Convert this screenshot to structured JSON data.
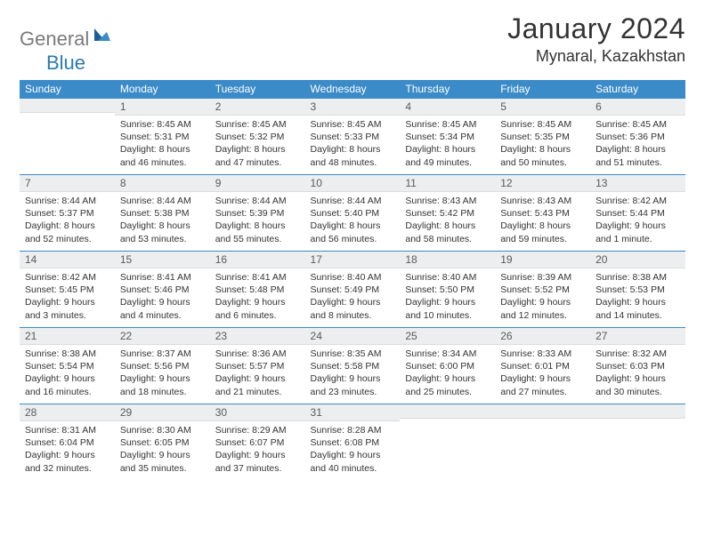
{
  "brand": {
    "part1": "General",
    "part2": "Blue"
  },
  "title": "January 2024",
  "location": "Mynaral, Kazakhstan",
  "colors": {
    "header_bg": "#3b8bc8",
    "header_text": "#ffffff",
    "num_bg": "#eceeef",
    "border": "#3b8bc8",
    "logo_gray": "#7a7a7a",
    "logo_blue": "#2a7ab0"
  },
  "day_names": [
    "Sunday",
    "Monday",
    "Tuesday",
    "Wednesday",
    "Thursday",
    "Friday",
    "Saturday"
  ],
  "weeks": [
    [
      {
        "num": "",
        "sunrise": "",
        "sunset": "",
        "daylight": ""
      },
      {
        "num": "1",
        "sunrise": "Sunrise: 8:45 AM",
        "sunset": "Sunset: 5:31 PM",
        "daylight": "Daylight: 8 hours and 46 minutes."
      },
      {
        "num": "2",
        "sunrise": "Sunrise: 8:45 AM",
        "sunset": "Sunset: 5:32 PM",
        "daylight": "Daylight: 8 hours and 47 minutes."
      },
      {
        "num": "3",
        "sunrise": "Sunrise: 8:45 AM",
        "sunset": "Sunset: 5:33 PM",
        "daylight": "Daylight: 8 hours and 48 minutes."
      },
      {
        "num": "4",
        "sunrise": "Sunrise: 8:45 AM",
        "sunset": "Sunset: 5:34 PM",
        "daylight": "Daylight: 8 hours and 49 minutes."
      },
      {
        "num": "5",
        "sunrise": "Sunrise: 8:45 AM",
        "sunset": "Sunset: 5:35 PM",
        "daylight": "Daylight: 8 hours and 50 minutes."
      },
      {
        "num": "6",
        "sunrise": "Sunrise: 8:45 AM",
        "sunset": "Sunset: 5:36 PM",
        "daylight": "Daylight: 8 hours and 51 minutes."
      }
    ],
    [
      {
        "num": "7",
        "sunrise": "Sunrise: 8:44 AM",
        "sunset": "Sunset: 5:37 PM",
        "daylight": "Daylight: 8 hours and 52 minutes."
      },
      {
        "num": "8",
        "sunrise": "Sunrise: 8:44 AM",
        "sunset": "Sunset: 5:38 PM",
        "daylight": "Daylight: 8 hours and 53 minutes."
      },
      {
        "num": "9",
        "sunrise": "Sunrise: 8:44 AM",
        "sunset": "Sunset: 5:39 PM",
        "daylight": "Daylight: 8 hours and 55 minutes."
      },
      {
        "num": "10",
        "sunrise": "Sunrise: 8:44 AM",
        "sunset": "Sunset: 5:40 PM",
        "daylight": "Daylight: 8 hours and 56 minutes."
      },
      {
        "num": "11",
        "sunrise": "Sunrise: 8:43 AM",
        "sunset": "Sunset: 5:42 PM",
        "daylight": "Daylight: 8 hours and 58 minutes."
      },
      {
        "num": "12",
        "sunrise": "Sunrise: 8:43 AM",
        "sunset": "Sunset: 5:43 PM",
        "daylight": "Daylight: 8 hours and 59 minutes."
      },
      {
        "num": "13",
        "sunrise": "Sunrise: 8:42 AM",
        "sunset": "Sunset: 5:44 PM",
        "daylight": "Daylight: 9 hours and 1 minute."
      }
    ],
    [
      {
        "num": "14",
        "sunrise": "Sunrise: 8:42 AM",
        "sunset": "Sunset: 5:45 PM",
        "daylight": "Daylight: 9 hours and 3 minutes."
      },
      {
        "num": "15",
        "sunrise": "Sunrise: 8:41 AM",
        "sunset": "Sunset: 5:46 PM",
        "daylight": "Daylight: 9 hours and 4 minutes."
      },
      {
        "num": "16",
        "sunrise": "Sunrise: 8:41 AM",
        "sunset": "Sunset: 5:48 PM",
        "daylight": "Daylight: 9 hours and 6 minutes."
      },
      {
        "num": "17",
        "sunrise": "Sunrise: 8:40 AM",
        "sunset": "Sunset: 5:49 PM",
        "daylight": "Daylight: 9 hours and 8 minutes."
      },
      {
        "num": "18",
        "sunrise": "Sunrise: 8:40 AM",
        "sunset": "Sunset: 5:50 PM",
        "daylight": "Daylight: 9 hours and 10 minutes."
      },
      {
        "num": "19",
        "sunrise": "Sunrise: 8:39 AM",
        "sunset": "Sunset: 5:52 PM",
        "daylight": "Daylight: 9 hours and 12 minutes."
      },
      {
        "num": "20",
        "sunrise": "Sunrise: 8:38 AM",
        "sunset": "Sunset: 5:53 PM",
        "daylight": "Daylight: 9 hours and 14 minutes."
      }
    ],
    [
      {
        "num": "21",
        "sunrise": "Sunrise: 8:38 AM",
        "sunset": "Sunset: 5:54 PM",
        "daylight": "Daylight: 9 hours and 16 minutes."
      },
      {
        "num": "22",
        "sunrise": "Sunrise: 8:37 AM",
        "sunset": "Sunset: 5:56 PM",
        "daylight": "Daylight: 9 hours and 18 minutes."
      },
      {
        "num": "23",
        "sunrise": "Sunrise: 8:36 AM",
        "sunset": "Sunset: 5:57 PM",
        "daylight": "Daylight: 9 hours and 21 minutes."
      },
      {
        "num": "24",
        "sunrise": "Sunrise: 8:35 AM",
        "sunset": "Sunset: 5:58 PM",
        "daylight": "Daylight: 9 hours and 23 minutes."
      },
      {
        "num": "25",
        "sunrise": "Sunrise: 8:34 AM",
        "sunset": "Sunset: 6:00 PM",
        "daylight": "Daylight: 9 hours and 25 minutes."
      },
      {
        "num": "26",
        "sunrise": "Sunrise: 8:33 AM",
        "sunset": "Sunset: 6:01 PM",
        "daylight": "Daylight: 9 hours and 27 minutes."
      },
      {
        "num": "27",
        "sunrise": "Sunrise: 8:32 AM",
        "sunset": "Sunset: 6:03 PM",
        "daylight": "Daylight: 9 hours and 30 minutes."
      }
    ],
    [
      {
        "num": "28",
        "sunrise": "Sunrise: 8:31 AM",
        "sunset": "Sunset: 6:04 PM",
        "daylight": "Daylight: 9 hours and 32 minutes."
      },
      {
        "num": "29",
        "sunrise": "Sunrise: 8:30 AM",
        "sunset": "Sunset: 6:05 PM",
        "daylight": "Daylight: 9 hours and 35 minutes."
      },
      {
        "num": "30",
        "sunrise": "Sunrise: 8:29 AM",
        "sunset": "Sunset: 6:07 PM",
        "daylight": "Daylight: 9 hours and 37 minutes."
      },
      {
        "num": "31",
        "sunrise": "Sunrise: 8:28 AM",
        "sunset": "Sunset: 6:08 PM",
        "daylight": "Daylight: 9 hours and 40 minutes."
      },
      {
        "num": "",
        "sunrise": "",
        "sunset": "",
        "daylight": ""
      },
      {
        "num": "",
        "sunrise": "",
        "sunset": "",
        "daylight": ""
      },
      {
        "num": "",
        "sunrise": "",
        "sunset": "",
        "daylight": ""
      }
    ]
  ]
}
